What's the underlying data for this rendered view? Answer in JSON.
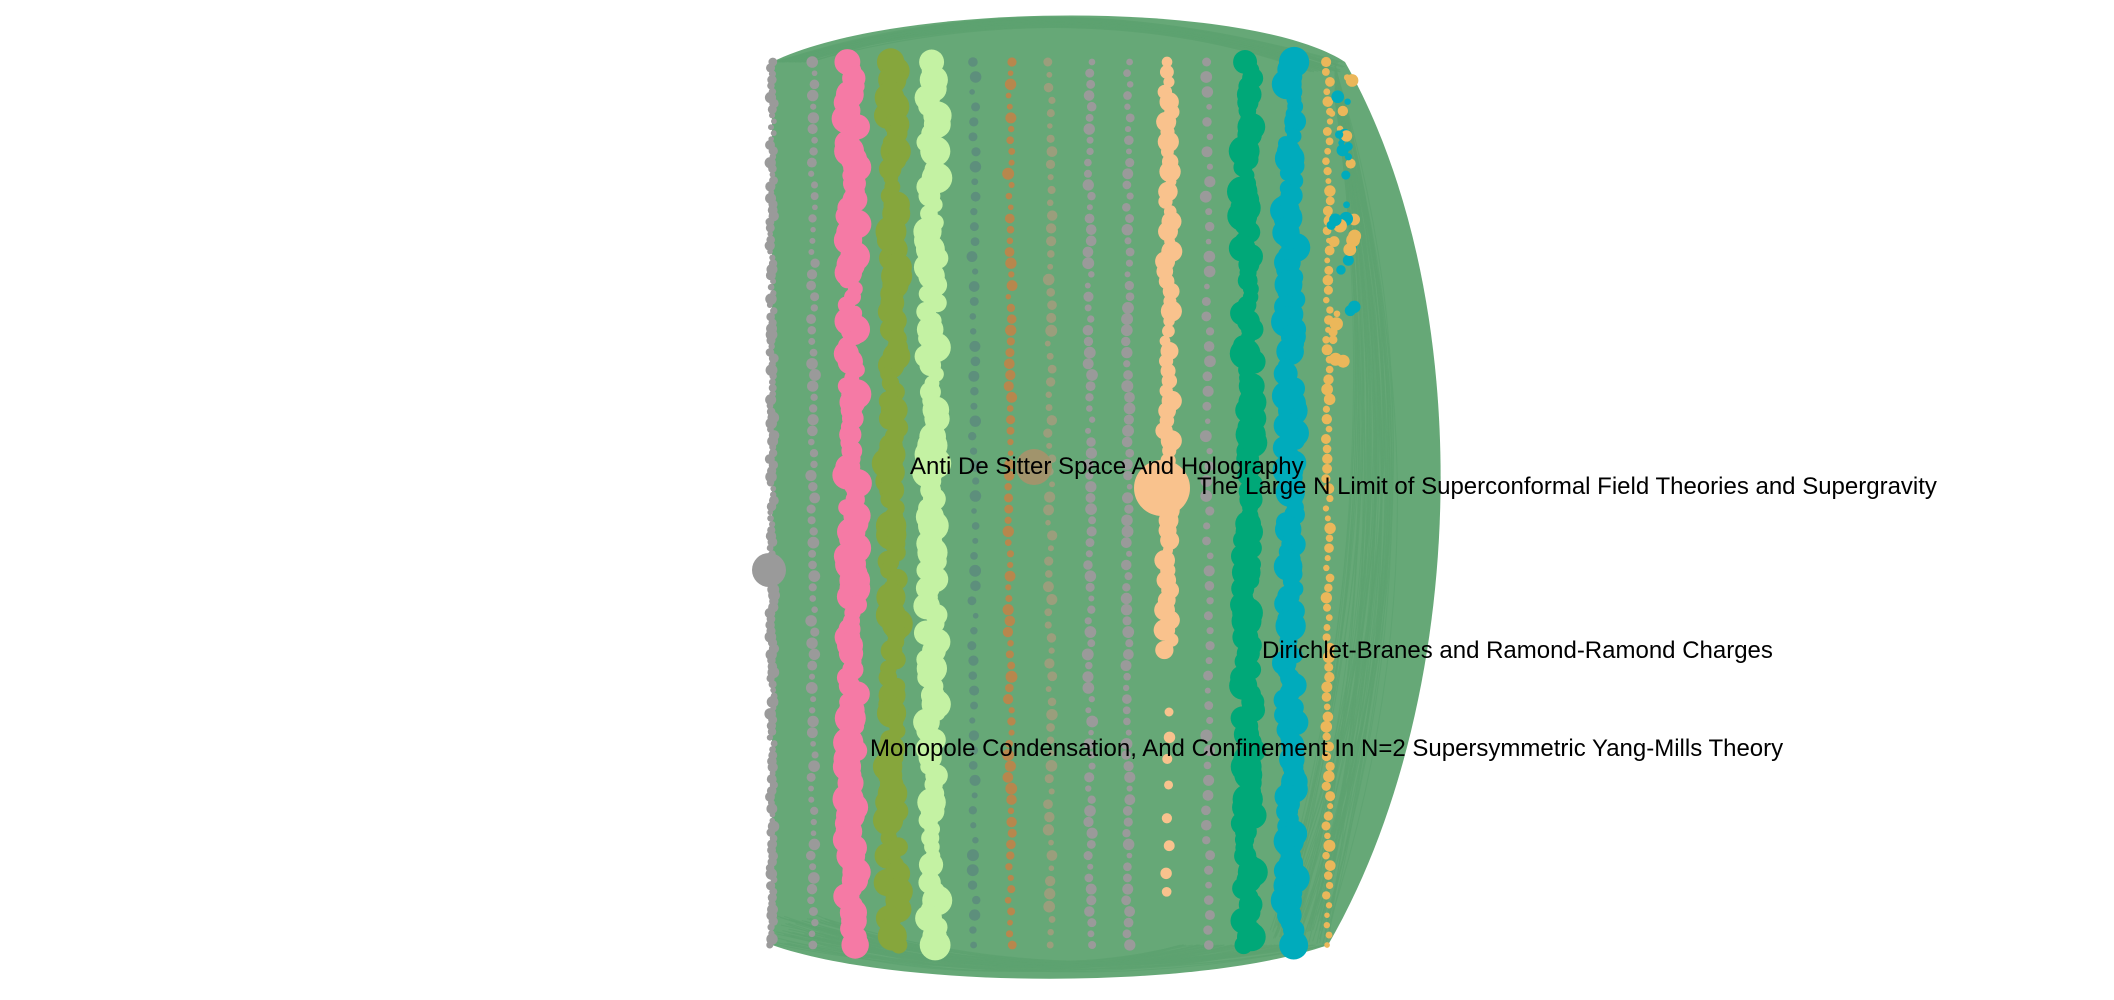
{
  "colors": {
    "background": "#ffffff",
    "edge": "#5ea370",
    "label": "#000000"
  },
  "columns": [
    {
      "name": "column-1",
      "color": "#9a9a9a",
      "node_count": 150,
      "size": "small"
    },
    {
      "name": "column-2",
      "color": "#9a9a9a",
      "node_count": 80,
      "size": "small"
    },
    {
      "name": "column-3",
      "color": "#f57aa5",
      "node_count": 110,
      "size": "large"
    },
    {
      "name": "column-4",
      "color": "#86a63c",
      "node_count": 100,
      "size": "large"
    },
    {
      "name": "column-5",
      "color": "#c4f2a3",
      "node_count": 100,
      "size": "large"
    },
    {
      "name": "column-6",
      "color": "#5d8f7c",
      "node_count": 60,
      "size": "small"
    },
    {
      "name": "column-7",
      "color": "#b7874d",
      "node_count": 80,
      "size": "small"
    },
    {
      "name": "column-8",
      "color": "#9a9e7c",
      "node_count": 70,
      "size": "small"
    },
    {
      "name": "column-9",
      "color": "#9a9a9a",
      "node_count": 80,
      "size": "small"
    },
    {
      "name": "column-10",
      "color": "#9a9a9a",
      "node_count": 80,
      "size": "small"
    },
    {
      "name": "column-11",
      "color": "#f9c28d",
      "node_count": 60,
      "size": "medium"
    },
    {
      "name": "column-12",
      "color": "#9a9a9a",
      "node_count": 60,
      "size": "small"
    },
    {
      "name": "column-13",
      "color": "#00a878",
      "node_count": 110,
      "size": "large"
    },
    {
      "name": "column-14",
      "color": "#00abbc",
      "node_count": 120,
      "size": "large"
    },
    {
      "name": "column-15",
      "color": "#ebb75a",
      "node_count": 90,
      "size": "small"
    }
  ],
  "highlighted_nodes": [
    {
      "name": "gray-hub-node",
      "color": "#9a9a9a"
    },
    {
      "name": "peach-hub-node",
      "color": "#f9c28d"
    },
    {
      "name": "tan-hub-node",
      "color": "#a1946c"
    }
  ],
  "labels": [
    {
      "name": "label-anti-de-sitter",
      "text": "Anti De Sitter Space And Holography"
    },
    {
      "name": "label-large-n-limit",
      "text": "The Large N Limit of Superconformal Field Theories and Supergravity"
    },
    {
      "name": "label-dirichlet-branes",
      "text": "Dirichlet-Branes and Ramond-Ramond Charges"
    },
    {
      "name": "label-monopole-condensation",
      "text": "Monopole Condensation, And Confinement In N=2 Supersymmetric Yang-Mills Theory"
    }
  ]
}
